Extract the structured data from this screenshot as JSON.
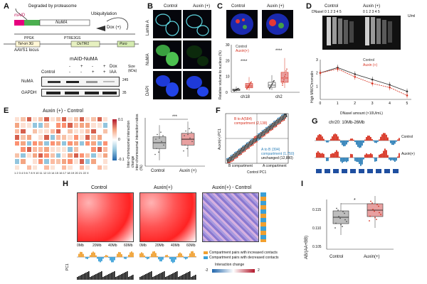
{
  "panel_labels": [
    "A",
    "B",
    "C",
    "D",
    "E",
    "F",
    "G",
    "H",
    "I"
  ],
  "panel_a": {
    "degraded_text": "Degraded by proteasome",
    "ubiq_text": "Ubiquitylation",
    "maid_label": "mAID",
    "numa_label": "NuMA",
    "dox_label": "Dox (+)",
    "ppgk_label": "P​PGK",
    "ptre_label": "PTRE3GS",
    "tet_label": "Tet-on 3G",
    "ostir1_label": "OsTIR1",
    "puro_label": "Puro",
    "aavs1_label": "AAVS1 locus",
    "blot_title": "mAID-NuMA",
    "dox_row_label": "Dox",
    "iaa_row_label": "IAA",
    "control_label": "Control",
    "size_label": "Size\n(kDa)",
    "dox_signs": [
      "-",
      "+",
      "-",
      "+"
    ],
    "iaa_signs": [
      "-",
      "-",
      "+",
      "+"
    ],
    "numa_blot": "NuMA",
    "gapdh_blot": "GAPDH",
    "size_245": "245",
    "size_35": "35"
  },
  "panel_b": {
    "col_control": "Control",
    "col_auxin": "Auxin (+)",
    "row_lamin": "Lamin A",
    "row_numa": "NuMA",
    "row_dapi": "DAPI"
  },
  "panel_c": {
    "col_control": "Control",
    "col_auxin": "Auxin (+)",
    "legend_control": "Control",
    "legend_auxin": "Auxin(+)",
    "ylabel": "Relative volume to nucleus (%)",
    "categories": [
      "ch18",
      "ch2"
    ],
    "yticks": [
      "0",
      "10",
      "20",
      "30"
    ],
    "sig": "****"
  },
  "panel_d": {
    "col_control": "Control",
    "col_auxin": "Auxin (+)",
    "dnase_label": "DNaseI",
    "lane_label": "0 1 2 3 4 5",
    "units": "U/ml",
    "legend_control": "Control",
    "legend_auxin": "Auxin (+)",
    "ylabel": "High MW/Chromatin",
    "xlabel": "DNaseI amount (×10U/mL)",
    "xticks": [
      "0",
      "1",
      "2",
      "3",
      "4",
      "5"
    ],
    "yticks": [
      "1",
      "2",
      "3"
    ]
  },
  "panel_e": {
    "title": "Auxin (+) - Control",
    "scale_top": "0.1",
    "scale_mid": "0",
    "scale_bot": "-0.1",
    "scale_label": "Inter-chromosomal interaction change",
    "box_ylabel": "inter-chromosomal interaction ratios (%)",
    "categories": [
      "Control",
      "Auxin (+)"
    ],
    "sig": "***",
    "chr_labels": "1 2 3 4 5 6 7 8 9 10 11 12 13 14 15 16 17 18 19 20 21 22 X"
  },
  "panel_f": {
    "ylabel": "Auxin(+) PC1",
    "xlabel": "Control PC1",
    "a_to_b": "A to B (394)",
    "a_to_b_sub": "compartment (1,750)",
    "b_to_a": "B to A(584)",
    "b_to_a_sub": "compartment (2,138)",
    "unchanged": "unchanged (12,880)",
    "b_compartment": "B compartment",
    "a_compartment": "A compartment"
  },
  "panel_g": {
    "title": "chr20: 10Mb-26Mb",
    "row_control": "Control",
    "row_auxin": "Auxin(+)"
  },
  "panel_h": {
    "col_control": "Control",
    "col_auxin": "Auxin(+)",
    "col_diff": "Auxin(+) - Control",
    "axis_labels": [
      "0Mb",
      "20Mb",
      "40Mb",
      "60Mb"
    ],
    "pc1_label": "PC1",
    "legend_increased": "Compartment pairs with increased contacts",
    "legend_decreased": "Compartment pairs with decreased contacts",
    "change_label": "Interaction change",
    "change_min": "-2",
    "change_max": "2"
  },
  "panel_i": {
    "ylabel": "AB/(AA+BB)",
    "categories": [
      "Control",
      "Auxin(+)"
    ],
    "yticks": [
      "0.105",
      "0.110",
      "0.115"
    ],
    "sig": "*"
  },
  "colors": {
    "control_box": "#bdbdbd",
    "auxin_box": "#e8a0a0",
    "red": "#d7301f",
    "blue": "#2c7fb8",
    "orange": "#f0a030",
    "cyan": "#3aa0d8"
  },
  "chart_data": [
    {
      "type": "line",
      "title": "",
      "xlabel": "DNaseI amount (×10U/mL)",
      "ylabel": "High MW/Chromatin",
      "x": [
        0,
        1,
        2,
        3,
        4,
        5
      ],
      "series": [
        {
          "name": "Control",
          "values": [
            2.0,
            2.4,
            1.9,
            1.5,
            1.1,
            0.6
          ]
        },
        {
          "name": "Auxin (+)",
          "values": [
            2.0,
            2.3,
            1.7,
            1.2,
            0.9,
            0.3
          ]
        }
      ],
      "ylim": [
        0,
        3
      ]
    },
    {
      "type": "box",
      "title": "",
      "ylabel": "Relative volume to nucleus (%)",
      "categories": [
        "ch18",
        "ch2"
      ],
      "series": [
        {
          "name": "Control",
          "medians": [
            1.5,
            4.5
          ]
        },
        {
          "name": "Auxin(+)",
          "medians": [
            4.0,
            9.0
          ]
        }
      ]
    },
    {
      "type": "box",
      "ylabel": "inter-chromosomal interaction ratios (%)",
      "categories": [
        "Control",
        "Auxin (+)"
      ],
      "medians": [
        0.4,
        0.43
      ]
    },
    {
      "type": "box",
      "ylabel": "AB/(AA+BB)",
      "categories": [
        "Control",
        "Auxin(+)"
      ],
      "medians": [
        0.113,
        0.115
      ],
      "ylim": [
        0.104,
        0.118
      ]
    }
  ]
}
